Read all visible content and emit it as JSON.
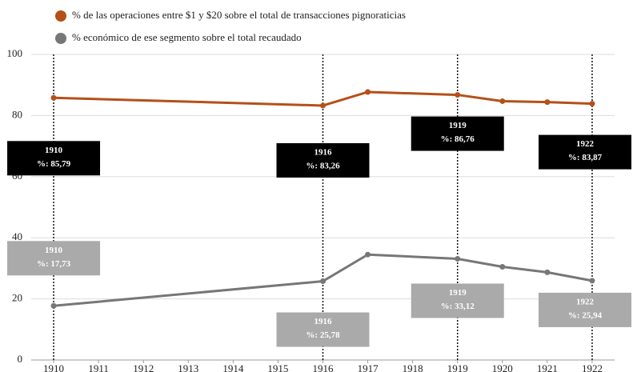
{
  "chart_data": {
    "type": "line",
    "x": [
      1910,
      1916,
      1917,
      1919,
      1920,
      1921,
      1922
    ],
    "series": [
      {
        "name": "% de las operaciones entre $1 y $20 sobre el total de transacciones pignoraticias",
        "color": "#b5501a",
        "values": [
          85.79,
          83.26,
          87.7,
          86.76,
          84.7,
          84.4,
          83.87
        ],
        "value_labels": [
          "%: 85,79",
          "%: 83,26",
          null,
          "%: 86,76",
          null,
          null,
          "%: 83,87"
        ]
      },
      {
        "name": "% económico de ese segmento sobre el total recaudado",
        "color": "#777777",
        "values": [
          17.73,
          25.78,
          34.5,
          33.12,
          30.5,
          28.7,
          25.94
        ],
        "value_labels": [
          "%: 17,73",
          "%: 25,78",
          null,
          "%: 33,12",
          null,
          null,
          "%: 25,94"
        ]
      }
    ],
    "xlim": [
      1909.5,
      1922.5
    ],
    "xticks": [
      1910,
      1911,
      1912,
      1913,
      1914,
      1915,
      1916,
      1917,
      1918,
      1919,
      1920,
      1921,
      1922
    ],
    "ylim": [
      0,
      100
    ],
    "yticks": [
      0,
      20,
      40,
      60,
      80,
      100
    ],
    "grid": true
  }
}
